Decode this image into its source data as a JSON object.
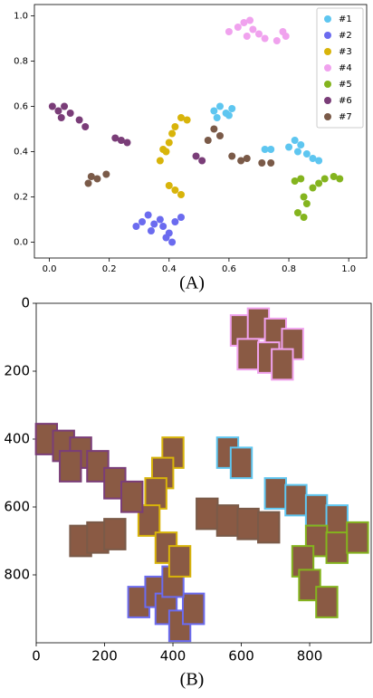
{
  "chart_data": [
    {
      "type": "scatter",
      "caption": "(A)",
      "xlim": [
        -0.05,
        1.06
      ],
      "ylim": [
        -0.07,
        1.05
      ],
      "xticks": [
        {
          "value": 0,
          "label": "0.0"
        },
        {
          "value": 0.2,
          "label": "0.2"
        },
        {
          "value": 0.4,
          "label": "0.4"
        },
        {
          "value": 0.6,
          "label": "0.6"
        },
        {
          "value": 0.8,
          "label": "0.8"
        },
        {
          "value": 1,
          "label": "1.0"
        }
      ],
      "yticks": [
        {
          "value": 0,
          "label": "0.0"
        },
        {
          "value": 0.2,
          "label": "0.2"
        },
        {
          "value": 0.4,
          "label": "0.4"
        },
        {
          "value": 0.6,
          "label": "0.6"
        },
        {
          "value": 0.8,
          "label": "0.8"
        },
        {
          "value": 1,
          "label": "1.0"
        }
      ],
      "legend": "upper right",
      "series": [
        {
          "name": "#1",
          "color": "#5ec6f0",
          "x": [
            0.55,
            0.57,
            0.59,
            0.61,
            0.56,
            0.6,
            0.72,
            0.74,
            0.8,
            0.82,
            0.84,
            0.86,
            0.88,
            0.9,
            0.83
          ],
          "y": [
            0.58,
            0.6,
            0.57,
            0.59,
            0.55,
            0.56,
            0.41,
            0.41,
            0.42,
            0.45,
            0.43,
            0.39,
            0.37,
            0.36,
            0.4
          ]
        },
        {
          "name": "#2",
          "color": "#6b6bef",
          "x": [
            0.29,
            0.31,
            0.33,
            0.35,
            0.37,
            0.34,
            0.38,
            0.4,
            0.42,
            0.44,
            0.41,
            0.39
          ],
          "y": [
            0.07,
            0.09,
            0.12,
            0.08,
            0.1,
            0.05,
            0.07,
            0.04,
            0.09,
            0.11,
            0.0,
            0.02
          ]
        },
        {
          "name": "#3",
          "color": "#d8b40a",
          "x": [
            0.37,
            0.38,
            0.4,
            0.41,
            0.42,
            0.44,
            0.46,
            0.39,
            0.4,
            0.42,
            0.44
          ],
          "y": [
            0.36,
            0.41,
            0.44,
            0.48,
            0.51,
            0.55,
            0.54,
            0.4,
            0.25,
            0.23,
            0.21
          ]
        },
        {
          "name": "#4",
          "color": "#f0a2ee",
          "x": [
            0.6,
            0.63,
            0.65,
            0.67,
            0.68,
            0.7,
            0.72,
            0.66,
            0.76,
            0.78,
            0.79
          ],
          "y": [
            0.93,
            0.95,
            0.97,
            0.98,
            0.94,
            0.92,
            0.9,
            0.91,
            0.89,
            0.93,
            0.91
          ]
        },
        {
          "name": "#5",
          "color": "#84b41e",
          "x": [
            0.82,
            0.84,
            0.85,
            0.86,
            0.88,
            0.9,
            0.92,
            0.95,
            0.97,
            0.83,
            0.85
          ],
          "y": [
            0.27,
            0.28,
            0.2,
            0.17,
            0.24,
            0.26,
            0.28,
            0.29,
            0.28,
            0.13,
            0.11
          ]
        },
        {
          "name": "#6",
          "color": "#7a3d78",
          "x": [
            0.01,
            0.03,
            0.05,
            0.07,
            0.04,
            0.1,
            0.12,
            0.22,
            0.24,
            0.26,
            0.49,
            0.51
          ],
          "y": [
            0.6,
            0.58,
            0.6,
            0.57,
            0.55,
            0.54,
            0.51,
            0.46,
            0.45,
            0.44,
            0.38,
            0.36
          ]
        },
        {
          "name": "#7",
          "color": "#7a5a48",
          "x": [
            0.13,
            0.14,
            0.16,
            0.19,
            0.53,
            0.55,
            0.57,
            0.61,
            0.64,
            0.66,
            0.71,
            0.74
          ],
          "y": [
            0.26,
            0.29,
            0.28,
            0.3,
            0.45,
            0.5,
            0.47,
            0.38,
            0.36,
            0.37,
            0.35,
            0.35
          ]
        }
      ]
    },
    {
      "type": "image_scatter",
      "caption": "(B)",
      "xlim": [
        0,
        980
      ],
      "ylim": [
        1000,
        0
      ],
      "xticks": [
        0,
        200,
        400,
        600,
        800
      ],
      "yticks": [
        0,
        200,
        400,
        600,
        800
      ],
      "series": [
        {
          "color": "#5ec6f0",
          "x": [
            560,
            600,
            700,
            760,
            820,
            880
          ],
          "y": [
            440,
            470,
            560,
            580,
            610,
            640
          ]
        },
        {
          "color": "#6b6bef",
          "x": [
            300,
            350,
            380,
            420,
            460,
            400
          ],
          "y": [
            880,
            850,
            900,
            950,
            900,
            820
          ]
        },
        {
          "color": "#d8b40a",
          "x": [
            400,
            370,
            350,
            330,
            380,
            420
          ],
          "y": [
            440,
            500,
            560,
            640,
            720,
            760
          ]
        },
        {
          "color": "#f0a2ee",
          "x": [
            600,
            650,
            700,
            620,
            680,
            750,
            720
          ],
          "y": [
            80,
            60,
            90,
            150,
            160,
            120,
            180
          ]
        },
        {
          "color": "#84b41e",
          "x": [
            820,
            880,
            940,
            780,
            800,
            850
          ],
          "y": [
            700,
            720,
            690,
            760,
            830,
            880
          ]
        },
        {
          "color": "#7a3d78",
          "x": [
            30,
            80,
            130,
            180,
            230,
            280,
            100
          ],
          "y": [
            400,
            420,
            440,
            480,
            530,
            570,
            480
          ]
        },
        {
          "color": "#7a5a48",
          "x": [
            130,
            180,
            230,
            500,
            560,
            620,
            680
          ],
          "y": [
            700,
            690,
            680,
            620,
            640,
            650,
            660
          ]
        }
      ]
    }
  ]
}
